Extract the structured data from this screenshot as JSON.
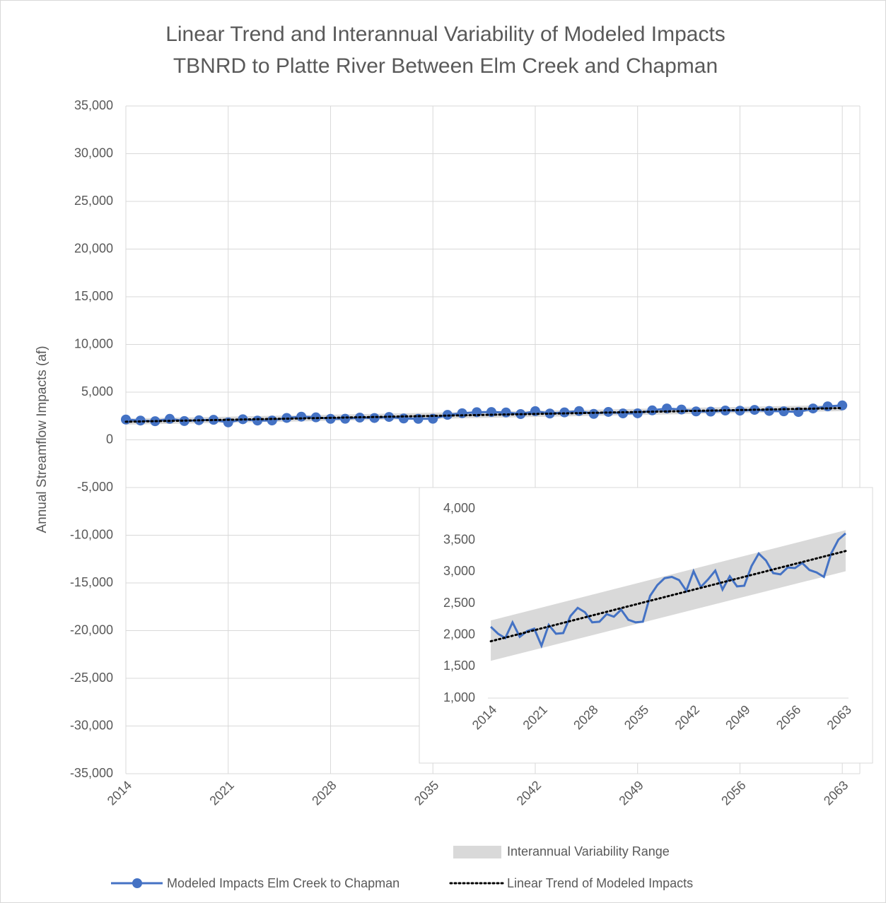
{
  "chart_data": [
    {
      "type": "line",
      "title": [
        "Linear Trend and Interannual Variability of Modeled Impacts",
        "TBNRD to Platte River Between Elm Creek and Chapman"
      ],
      "y_label": "Annual Streamflow Impacts (af)",
      "x": [
        2014,
        2015,
        2016,
        2017,
        2018,
        2019,
        2020,
        2021,
        2022,
        2023,
        2024,
        2025,
        2026,
        2027,
        2028,
        2029,
        2030,
        2031,
        2032,
        2033,
        2034,
        2035,
        2036,
        2037,
        2038,
        2039,
        2040,
        2041,
        2042,
        2043,
        2044,
        2045,
        2046,
        2047,
        2048,
        2049,
        2050,
        2051,
        2052,
        2053,
        2054,
        2055,
        2056,
        2057,
        2058,
        2059,
        2060,
        2061,
        2062,
        2063
      ],
      "series": [
        {
          "name": "Modeled Impacts Elm Creek to Chapman",
          "color": "#4472c4",
          "values": [
            2130,
            2020,
            1950,
            2200,
            1970,
            2060,
            2100,
            1830,
            2160,
            2020,
            2030,
            2300,
            2430,
            2360,
            2200,
            2210,
            2330,
            2290,
            2400,
            2240,
            2200,
            2210,
            2620,
            2790,
            2900,
            2920,
            2870,
            2700,
            3010,
            2760,
            2880,
            3020,
            2720,
            2930,
            2770,
            2780,
            3090,
            3290,
            3180,
            2980,
            2960,
            3070,
            3060,
            3140,
            3030,
            2990,
            2920,
            3290,
            3510,
            3610
          ]
        }
      ],
      "trend": {
        "name": "Linear Trend of Modeled Impacts",
        "color": "#000000",
        "x": [
          2014,
          2063
        ],
        "values": [
          1900,
          3330
        ]
      },
      "band": {
        "name": "Interannual Variability Range",
        "color": "#d9d9d9",
        "x": [
          2014,
          2063
        ],
        "lower": [
          1590,
          3010
        ],
        "upper": [
          2230,
          3660
        ]
      },
      "xlim": [
        2014,
        2064.2
      ],
      "xticks": [
        2014,
        2021,
        2028,
        2035,
        2042,
        2049,
        2056,
        2063
      ],
      "ylim": [
        -35000,
        35000
      ],
      "yticks": [
        {
          "value": -35000,
          "label": "-35,000"
        },
        {
          "value": -30000,
          "label": "-30,000"
        },
        {
          "value": -25000,
          "label": "-25,000"
        },
        {
          "value": -20000,
          "label": "-20,000"
        },
        {
          "value": -15000,
          "label": "-15,000"
        },
        {
          "value": -10000,
          "label": "-10,000"
        },
        {
          "value": -5000,
          "label": "-5,000"
        },
        0,
        {
          "value": 5000,
          "label": "5,000"
        },
        {
          "value": 10000,
          "label": "10,000"
        },
        {
          "value": 15000,
          "label": "15,000"
        },
        {
          "value": 20000,
          "label": "20,000"
        },
        {
          "value": 25000,
          "label": "25,000"
        },
        {
          "value": 30000,
          "label": "30,000"
        },
        {
          "value": 35000,
          "label": "35,000"
        }
      ],
      "grid": true
    },
    {
      "type": "inset",
      "xlim": [
        2013.6,
        2063.4
      ],
      "xticks": [
        2014,
        2021,
        2028,
        2035,
        2042,
        2049,
        2056,
        2063
      ],
      "ylim": [
        1000,
        4000
      ],
      "yticks": [
        {
          "value": 1000,
          "label": "1,000"
        },
        {
          "value": 1500,
          "label": "1,500"
        },
        {
          "value": 2000,
          "label": "2,000"
        },
        {
          "value": 2500,
          "label": "2,500"
        },
        {
          "value": 3000,
          "label": "3,000"
        },
        {
          "value": 3500,
          "label": "3,500"
        },
        {
          "value": 4000,
          "label": "4,000"
        }
      ],
      "grid": false
    }
  ]
}
